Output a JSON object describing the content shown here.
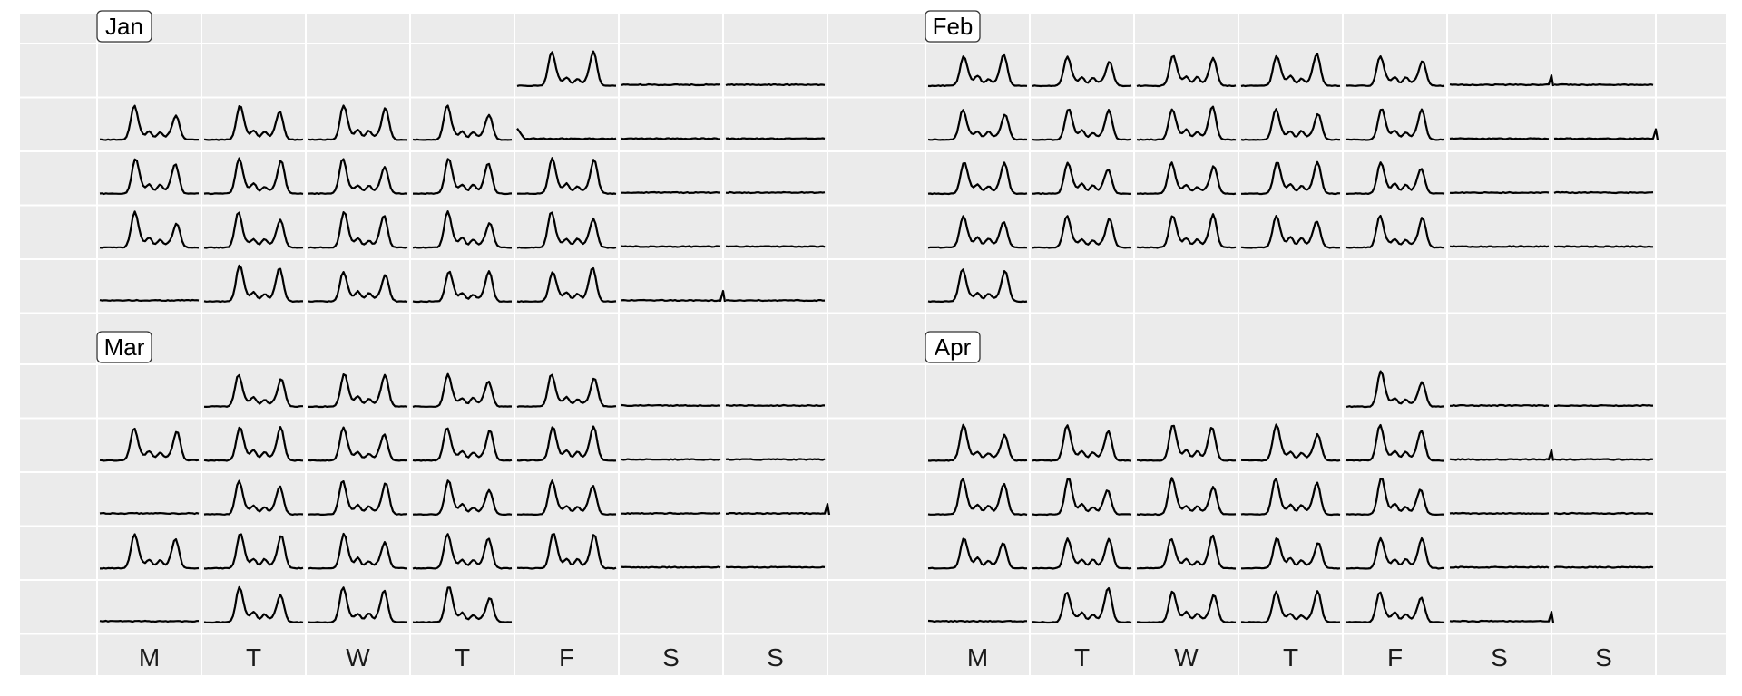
{
  "chart_data": {
    "type": "line",
    "layout": "calendar",
    "panels": [
      {
        "month": "Jan",
        "first_weekday": 4,
        "days": 31,
        "day_types": [
          "T",
          "W",
          "W",
          "W",
          "W",
          "W",
          "W",
          "H",
          "W",
          "W",
          "W",
          "W",
          "W",
          "W",
          "W",
          "W",
          "W",
          "W",
          "W",
          "W",
          "W",
          "W",
          "W",
          "W",
          "L",
          "W",
          "W",
          "W",
          "W",
          "W",
          "W"
        ],
        "end_ticks": [
          29
        ]
      },
      {
        "month": "Feb",
        "first_weekday": 0,
        "days": 29,
        "day_types": [
          "W",
          "W",
          "W",
          "W",
          "W",
          "W",
          "W",
          "W",
          "W",
          "W",
          "W",
          "W",
          "W",
          "W",
          "W",
          "W",
          "W",
          "W",
          "W",
          "W",
          "W",
          "W",
          "W",
          "W",
          "W",
          "W",
          "W",
          "W",
          "W"
        ],
        "end_ticks": [
          5,
          13
        ]
      },
      {
        "month": "Mar",
        "first_weekday": 1,
        "days": 31,
        "day_types": [
          "W",
          "W",
          "W",
          "W",
          "W",
          "W",
          "W",
          "W",
          "W",
          "W",
          "W",
          "W",
          "W",
          "L",
          "W",
          "W",
          "W",
          "W",
          "W",
          "W",
          "W",
          "W",
          "W",
          "W",
          "W",
          "W",
          "W",
          "L",
          "W",
          "W",
          "W"
        ],
        "end_ticks": [
          19
        ]
      },
      {
        "month": "Apr",
        "first_weekday": 4,
        "days": 30,
        "day_types": [
          "W",
          "W",
          "W",
          "W",
          "W",
          "W",
          "W",
          "W",
          "W",
          "W",
          "W",
          "W",
          "W",
          "W",
          "W",
          "W",
          "W",
          "W",
          "W",
          "W",
          "W",
          "W",
          "W",
          "W",
          "L",
          "W",
          "W",
          "W",
          "W",
          "W"
        ],
        "end_ticks": [
          8,
          29
        ]
      }
    ],
    "weekday_labels": [
      "M",
      "T",
      "W",
      "T",
      "F",
      "S",
      "S"
    ],
    "grid": true,
    "legend": "none"
  }
}
